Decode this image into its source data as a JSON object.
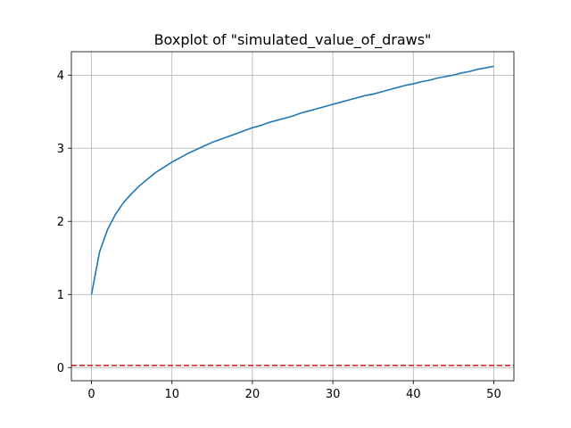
{
  "chart_data": {
    "type": "line",
    "title": "Boxplot of \"simulated_value_of_draws\"",
    "xlabel": "",
    "ylabel": "",
    "xlim": [
      -2.5,
      52.5
    ],
    "ylim": [
      -0.18,
      4.32
    ],
    "xticks": [
      0,
      10,
      20,
      30,
      40,
      50
    ],
    "yticks": [
      0,
      1,
      2,
      3,
      4
    ],
    "grid": true,
    "series": [
      {
        "color": "#1f77b4",
        "style": "solid",
        "x": [
          0,
          1,
          2,
          3,
          4,
          5,
          6,
          7,
          8,
          9,
          10,
          11,
          12,
          13,
          14,
          15,
          16,
          17,
          18,
          19,
          20,
          21,
          22,
          23,
          24,
          25,
          26,
          27,
          28,
          29,
          30,
          31,
          32,
          33,
          34,
          35,
          36,
          37,
          38,
          39,
          40,
          41,
          42,
          43,
          44,
          45,
          46,
          47,
          48,
          49,
          50
        ],
        "y": [
          1.0,
          1.58,
          1.89,
          2.1,
          2.26,
          2.38,
          2.49,
          2.58,
          2.67,
          2.74,
          2.81,
          2.87,
          2.93,
          2.98,
          3.03,
          3.08,
          3.12,
          3.16,
          3.2,
          3.24,
          3.28,
          3.31,
          3.35,
          3.38,
          3.41,
          3.44,
          3.48,
          3.51,
          3.54,
          3.57,
          3.6,
          3.63,
          3.66,
          3.69,
          3.72,
          3.74,
          3.77,
          3.8,
          3.83,
          3.86,
          3.88,
          3.91,
          3.93,
          3.96,
          3.98,
          4.0,
          4.03,
          4.05,
          4.08,
          4.1,
          4.12
        ]
      }
    ],
    "reference_lines": [
      {
        "y": 0.03,
        "color": "#d62728",
        "style": "dashed"
      }
    ]
  }
}
